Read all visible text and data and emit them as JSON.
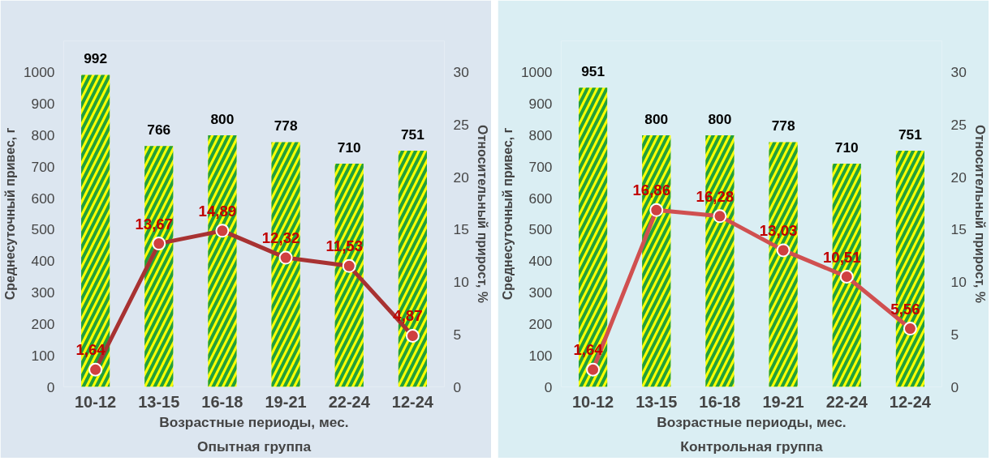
{
  "chart_data": [
    {
      "type": "bar",
      "title": "Опытная группа",
      "xlabel": "Возрастные периоды, мес.",
      "ylabel": "Среднесуточный привес, г",
      "y2label": "Относительный прирост, %",
      "categories": [
        "10-12",
        "13-15",
        "16-18",
        "19-21",
        "22-24",
        "12-24"
      ],
      "ylim": [
        0,
        1100
      ],
      "yticks": [
        0,
        100,
        200,
        300,
        400,
        500,
        600,
        700,
        800,
        900,
        1000
      ],
      "y2lim": [
        0,
        33
      ],
      "y2ticks": [
        0,
        5,
        10,
        15,
        20,
        25,
        30
      ],
      "data_labels": true,
      "marker": "circle",
      "series": [
        {
          "color": "#ffff00",
          "values": [
            992,
            766,
            800,
            778,
            710,
            751
          ]
        },
        {
          "type": "line",
          "axis": "y2",
          "color": "#a83232",
          "values": [
            1.64,
            13.67,
            14.89,
            12.32,
            11.53,
            4.87
          ],
          "value_labels": [
            "1,64",
            "13,67",
            "14,89",
            "12,32",
            "11,53",
            "4,87"
          ]
        }
      ]
    },
    {
      "type": "bar",
      "title": "Контрольная группа",
      "xlabel": "Возрастные периоды, мес.",
      "ylabel": "Среднесуточный привес, г",
      "y2label": "Относительный прирост, %",
      "categories": [
        "10-12",
        "13-15",
        "16-18",
        "19-21",
        "22-24",
        "12-24"
      ],
      "ylim": [
        0,
        1100
      ],
      "yticks": [
        0,
        100,
        200,
        300,
        400,
        500,
        600,
        700,
        800,
        900,
        1000
      ],
      "y2lim": [
        0,
        33
      ],
      "y2ticks": [
        0,
        5,
        10,
        15,
        20,
        25,
        30
      ],
      "data_labels": true,
      "marker": "circle",
      "series": [
        {
          "color": "#ffff00",
          "values": [
            951,
            800,
            800,
            778,
            710,
            751
          ]
        },
        {
          "type": "line",
          "axis": "y2",
          "color": "#d05050",
          "values": [
            1.64,
            16.86,
            16.28,
            13.03,
            10.51,
            5.56
          ],
          "value_labels": [
            "1,64",
            "16,86",
            "16,28",
            "13,03",
            "10,51",
            "5,56"
          ]
        }
      ]
    }
  ]
}
